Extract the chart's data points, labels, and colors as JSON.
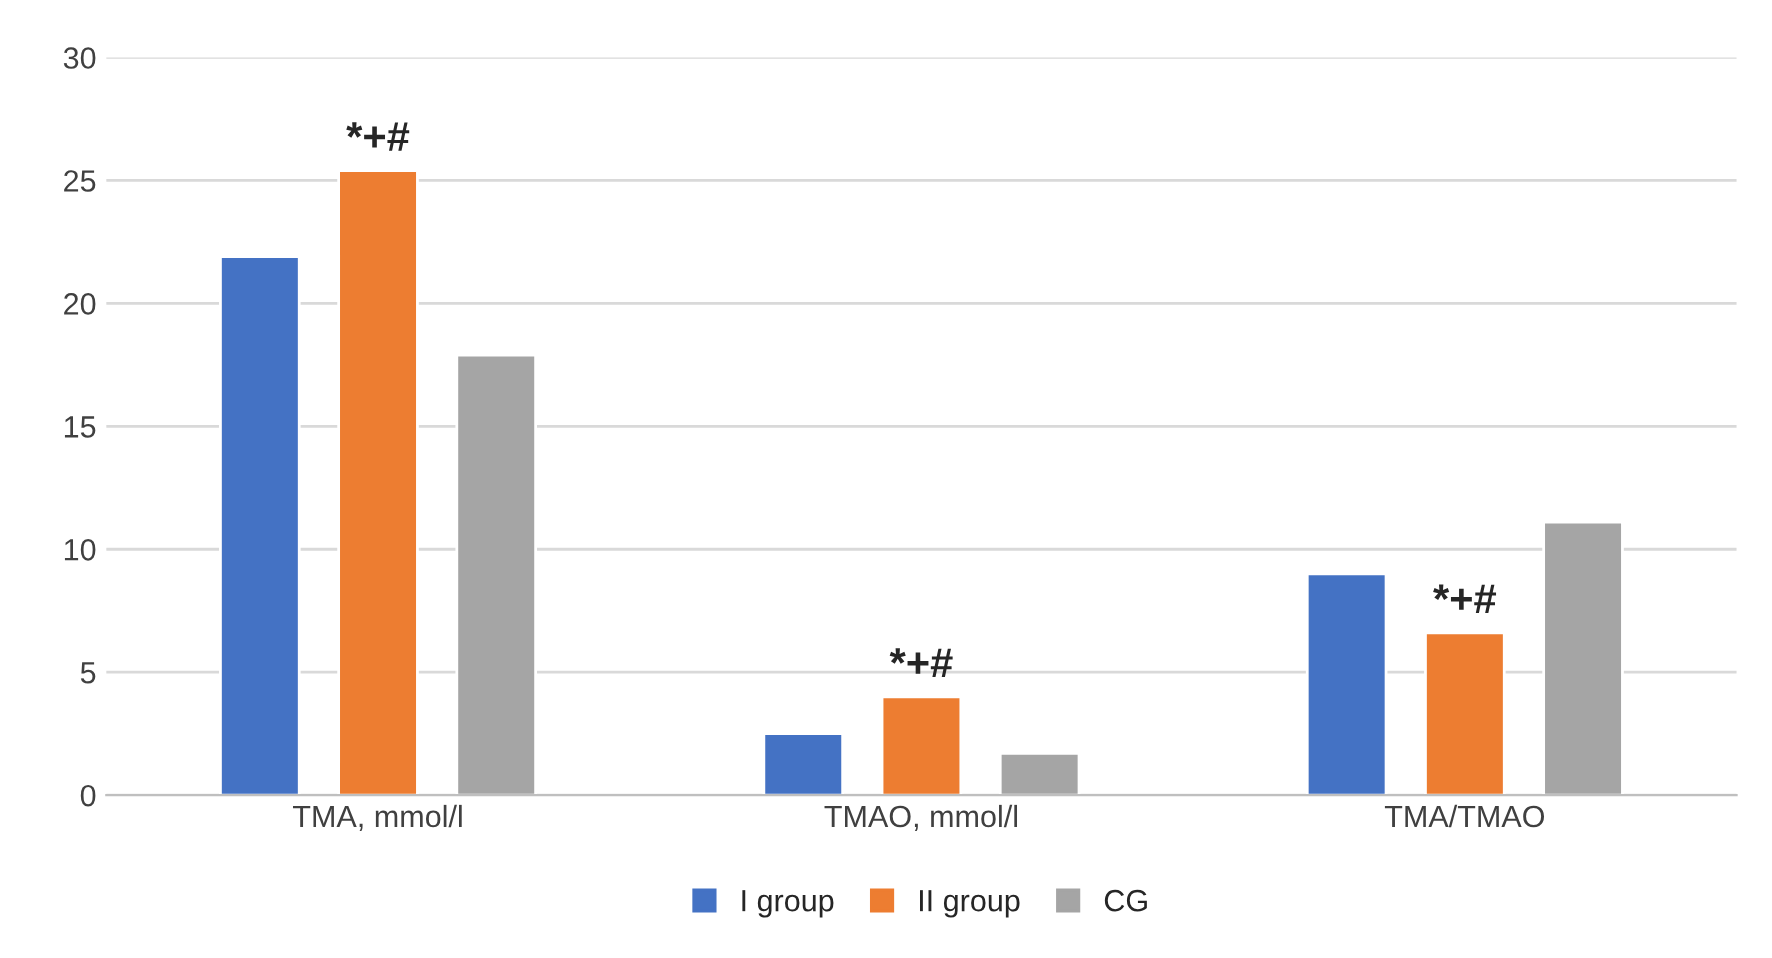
{
  "chart_data": {
    "type": "bar",
    "categories": [
      "TMA, mmol/l",
      "TMAO, mmol/l",
      "TMA/TMAO"
    ],
    "series": [
      {
        "name": "I group",
        "color": "#4472c4",
        "values": [
          21.9,
          2.5,
          9.0
        ]
      },
      {
        "name": "II group",
        "color": "#ed7d31",
        "values": [
          25.4,
          4.0,
          6.6
        ]
      },
      {
        "name": "CG",
        "color": "#a5a5a5",
        "values": [
          17.9,
          1.7,
          11.1
        ]
      }
    ],
    "ylim": [
      0,
      30
    ],
    "yticks": [
      0,
      5,
      10,
      15,
      20,
      25,
      30
    ],
    "grid": "y",
    "legend": "bottom",
    "annotations": [
      {
        "text": "*+#",
        "x": "TMA, mmol/l",
        "y": 25.4
      },
      {
        "text": "*+#",
        "x": "TMAO, mmol/l",
        "y": 4.0
      },
      {
        "text": "*+#",
        "x": "TMA/TMAO",
        "y": 6.6
      }
    ]
  }
}
